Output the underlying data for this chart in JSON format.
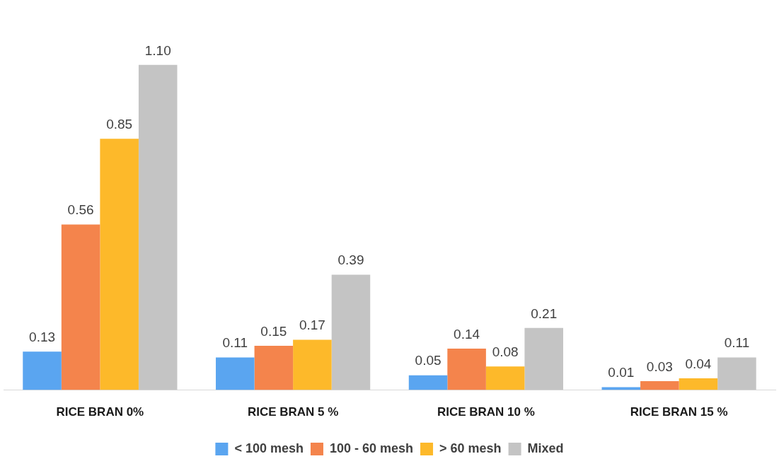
{
  "chart_data": {
    "type": "bar",
    "categories": [
      "RICE BRAN 0%",
      "RICE BRAN 5 %",
      "RICE BRAN 10 %",
      "RICE BRAN 15 %"
    ],
    "series": [
      {
        "name": "< 100 mesh",
        "color": "#5aa5f0",
        "values": [
          0.13,
          0.11,
          0.05,
          0.01
        ],
        "value_labels": [
          "0.13",
          "0.11",
          "0.05",
          "0.01"
        ]
      },
      {
        "name": "100 - 60 mesh",
        "color": "#f4844c",
        "values": [
          0.56,
          0.15,
          0.14,
          0.03
        ],
        "value_labels": [
          "0.56",
          "0.15",
          "0.14",
          "0.03"
        ]
      },
      {
        "name": "> 60 mesh",
        "color": "#fdb92a",
        "values": [
          0.85,
          0.17,
          0.08,
          0.04
        ],
        "value_labels": [
          "0.85",
          "0.17",
          "0.08",
          "0.04"
        ]
      },
      {
        "name": "Mixed",
        "color": "#c4c4c4",
        "values": [
          1.1,
          0.39,
          0.21,
          0.11
        ],
        "value_labels": [
          "1.10",
          "0.39",
          "0.21",
          "0.11"
        ]
      }
    ],
    "grid": false,
    "legend": "bottom",
    "tick_labels": "x"
  }
}
